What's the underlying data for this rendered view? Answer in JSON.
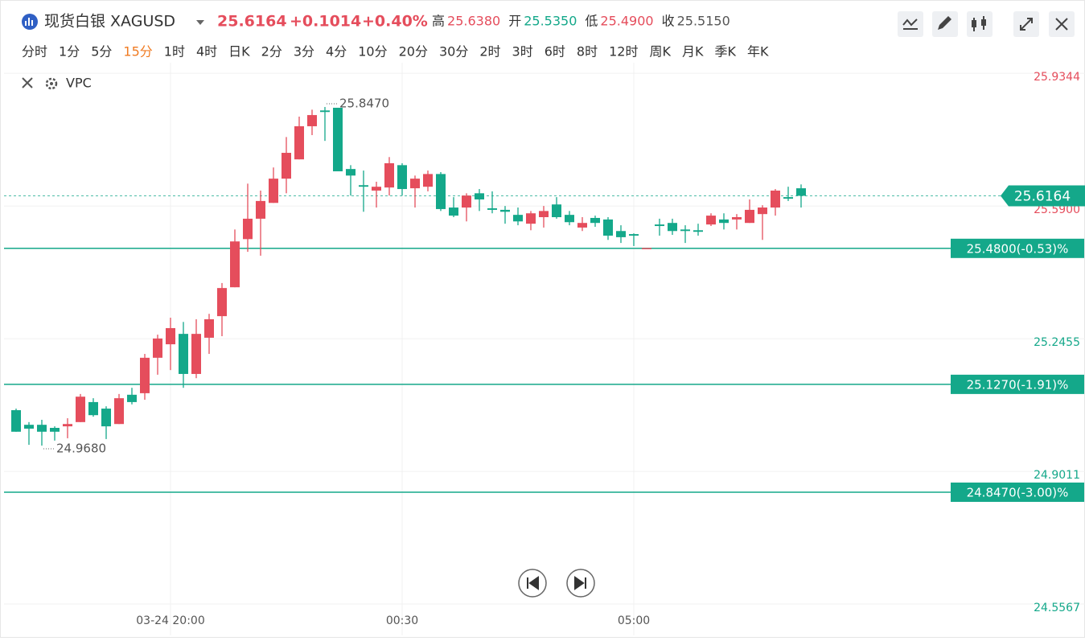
{
  "header": {
    "symbol": "现货白银 XAGUSD",
    "price": "25.6164",
    "change": "+0.1014",
    "change_pct": "+0.40%",
    "stats": [
      {
        "key": "高",
        "value": 25.638,
        "label": "25.6380",
        "color": "#e54d5c"
      },
      {
        "key": "开",
        "value": 25.535,
        "label": "25.5350",
        "color": "#14a88a"
      },
      {
        "key": "低",
        "value": 25.49,
        "label": "25.4900",
        "color": "#e54d5c"
      },
      {
        "key": "收",
        "value": 25.515,
        "label": "25.5150",
        "color": "#555555"
      }
    ],
    "periods": [
      "分时",
      "1分",
      "5分",
      "15分",
      "1时",
      "4时",
      "日K",
      "2分",
      "3分",
      "4分",
      "10分",
      "20分",
      "30分",
      "2时",
      "3时",
      "6时",
      "8时",
      "12时",
      "周K",
      "月K",
      "季K",
      "年K"
    ],
    "active_period_index": 3,
    "indicator": "VPC"
  },
  "chart_data": {
    "type": "candlestick",
    "categories": [
      null,
      null,
      null,
      null,
      null,
      null,
      null,
      null,
      null,
      null,
      null,
      null,
      "03-24 20:00",
      null,
      null,
      null,
      null,
      null,
      null,
      null,
      null,
      null,
      null,
      null,
      null,
      null,
      null,
      null,
      null,
      null,
      "00:30",
      null,
      null,
      null,
      null,
      null,
      null,
      null,
      null,
      null,
      null,
      null,
      null,
      null,
      null,
      null,
      null,
      null,
      "05:00",
      null,
      null,
      null,
      null,
      null,
      null,
      null,
      null,
      null,
      null,
      null,
      null,
      null
    ],
    "open": [
      25.06,
      25.022,
      25.022,
      25.014,
      25.018,
      25.029,
      25.081,
      25.064,
      25.024,
      25.1,
      25.104,
      25.196,
      25.231,
      25.258,
      25.154,
      25.248,
      25.304,
      25.379,
      25.504,
      25.557,
      25.598,
      25.661,
      25.711,
      25.797,
      25.838,
      25.845,
      25.686,
      25.644,
      25.63,
      25.638,
      25.696,
      25.636,
      25.64,
      25.673,
      25.586,
      25.586,
      25.623,
      25.584,
      25.58,
      25.567,
      25.544,
      25.561,
      25.594,
      25.567,
      25.534,
      25.559,
      25.555,
      25.525,
      25.517,
      25.481,
      25.542,
      25.546,
      25.529,
      25.527,
      25.542,
      25.555,
      25.555,
      25.546,
      25.569,
      25.586,
      25.613,
      25.636
    ],
    "high": [
      25.064,
      25.029,
      25.035,
      25.018,
      25.039,
      25.102,
      25.091,
      25.07,
      25.102,
      25.118,
      25.206,
      25.256,
      25.3,
      25.289,
      25.296,
      25.31,
      25.39,
      25.529,
      25.648,
      25.63,
      25.69,
      25.769,
      25.822,
      25.84,
      25.847,
      25.845,
      25.696,
      25.682,
      25.653,
      25.717,
      25.701,
      25.669,
      25.682,
      25.678,
      25.613,
      25.623,
      25.634,
      25.628,
      25.59,
      25.586,
      25.577,
      25.59,
      25.613,
      25.577,
      25.561,
      25.565,
      25.561,
      25.54,
      25.519,
      25.481,
      25.557,
      25.557,
      25.54,
      25.544,
      25.571,
      25.571,
      25.569,
      25.607,
      25.592,
      25.634,
      25.64,
      25.646
    ],
    "low": [
      25.004,
      24.97,
      24.968,
      24.981,
      24.987,
      25.029,
      25.043,
      24.985,
      25.024,
      25.075,
      25.087,
      25.152,
      25.164,
      25.118,
      25.143,
      25.206,
      25.252,
      25.379,
      25.471,
      25.461,
      25.598,
      25.623,
      25.711,
      25.774,
      25.759,
      25.68,
      25.617,
      25.575,
      25.586,
      25.617,
      25.617,
      25.586,
      25.628,
      25.577,
      25.561,
      25.55,
      25.577,
      25.571,
      25.544,
      25.54,
      25.527,
      25.534,
      25.557,
      25.54,
      25.525,
      25.536,
      25.502,
      25.494,
      25.486,
      25.481,
      25.513,
      25.515,
      25.494,
      25.513,
      25.538,
      25.529,
      25.529,
      25.546,
      25.502,
      25.565,
      25.603,
      25.586
    ],
    "close": [
      25.004,
      25.012,
      25.004,
      25.004,
      25.024,
      25.095,
      25.047,
      25.018,
      25.091,
      25.081,
      25.196,
      25.246,
      25.273,
      25.154,
      25.258,
      25.296,
      25.377,
      25.498,
      25.557,
      25.603,
      25.661,
      25.728,
      25.797,
      25.826,
      25.834,
      25.68,
      25.669,
      25.64,
      25.64,
      25.701,
      25.634,
      25.661,
      25.673,
      25.582,
      25.565,
      25.617,
      25.607,
      25.58,
      25.575,
      25.55,
      25.571,
      25.577,
      25.561,
      25.548,
      25.546,
      25.546,
      25.513,
      25.509,
      25.513,
      25.481,
      25.538,
      25.525,
      25.525,
      25.523,
      25.565,
      25.546,
      25.561,
      25.58,
      25.586,
      25.63,
      25.609,
      25.6164
    ],
    "up_color": "#e54d5c",
    "down_color": "#14a88a",
    "ylim": [
      24.538,
      25.941
    ],
    "yticks": [
      25.9344,
      {
        "value": 25.59,
        "label": "25.5900"
      },
      25.2455,
      24.9011,
      24.5567
    ],
    "grid": true,
    "last_price": 25.6164,
    "annotations": [
      {
        "value": 25.847,
        "label": "25.8470"
      },
      {
        "value": 24.968,
        "label": "24.9680"
      }
    ],
    "hlines": [
      {
        "value": 25.48,
        "label": "25.4800(-0.53)%"
      },
      {
        "value": 25.127,
        "label": "25.1270(-1.91)%"
      },
      {
        "value": 24.847,
        "label": "24.8470(-3.00)%"
      }
    ]
  }
}
